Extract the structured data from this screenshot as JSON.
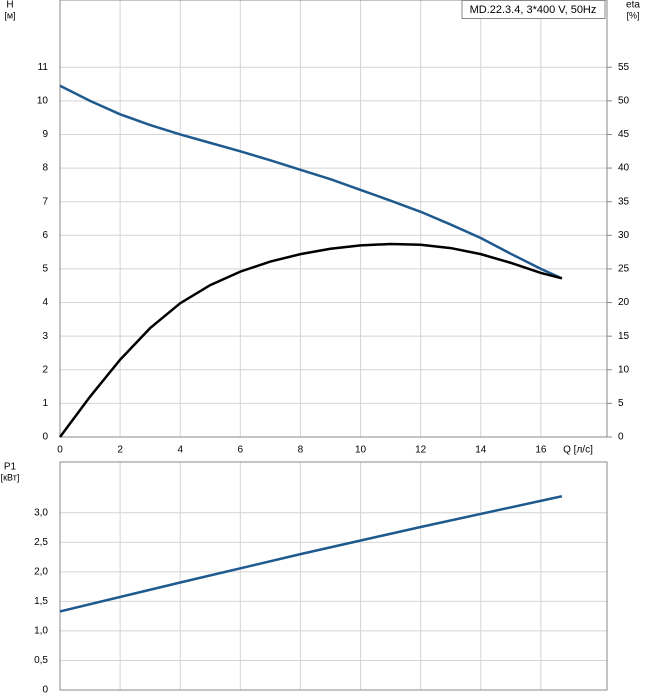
{
  "chart_data": [
    {
      "type": "line",
      "title": "MD.22.3.4, 3*400 V, 50Hz",
      "xlabel": "Q [л/с]",
      "x": [
        0,
        1,
        2,
        3,
        4,
        5,
        6,
        7,
        8,
        9,
        10,
        11,
        12,
        13,
        14,
        15,
        16,
        16.7
      ],
      "series": [
        {
          "name": "H",
          "unit": "[м]",
          "color": "#1f5a8f",
          "values": [
            10.45,
            10.0,
            9.6,
            9.28,
            9.0,
            8.75,
            8.5,
            8.23,
            7.95,
            7.67,
            7.35,
            7.03,
            6.7,
            6.32,
            5.92,
            5.45,
            5.0,
            4.72
          ]
        },
        {
          "name": "eta",
          "unit": "[%]",
          "color": "#000000",
          "axis": "y2",
          "values": [
            0,
            6,
            11.5,
            16.2,
            19.9,
            22.6,
            24.6,
            26.1,
            27.2,
            28,
            28.5,
            28.7,
            28.6,
            28.1,
            27.2,
            25.9,
            24.4,
            23.6
          ]
        }
      ],
      "xlim": [
        0,
        18.2
      ],
      "xticks": [
        0,
        2,
        4,
        6,
        8,
        10,
        12,
        14,
        16
      ],
      "ylim": [
        0,
        13
      ],
      "yticks": [
        0,
        1,
        2,
        3,
        4,
        5,
        6,
        7,
        8,
        9,
        10,
        11
      ],
      "y2lim": [
        0,
        65
      ],
      "y2ticks": [
        0,
        5,
        10,
        15,
        20,
        25,
        30,
        35,
        40,
        45,
        50,
        55
      ],
      "grid": true
    },
    {
      "type": "line",
      "x": [
        0,
        4,
        8,
        12,
        16.7
      ],
      "series": [
        {
          "name": "P1",
          "unit": "[кВт]",
          "color": "#1f5a8f",
          "values": [
            1.33,
            1.82,
            2.3,
            2.76,
            3.28
          ]
        }
      ],
      "xlim": [
        0,
        18.2
      ],
      "ylim": [
        0,
        3.86
      ],
      "yticks": [
        0,
        {
          "value": 0.5,
          "label": "0,5"
        },
        {
          "value": 1,
          "label": "1,0"
        },
        {
          "value": 1.5,
          "label": "1,5"
        },
        {
          "value": 2,
          "label": "2,0"
        },
        {
          "value": 2.5,
          "label": "2,5"
        },
        {
          "value": 3,
          "label": "3,0"
        }
      ],
      "grid": true
    }
  ]
}
